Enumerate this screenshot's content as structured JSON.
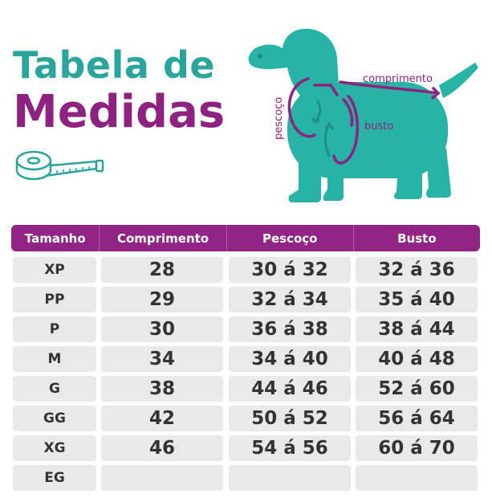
{
  "title": {
    "line1": "Tabela de",
    "line2": "Medidas"
  },
  "diagram": {
    "label_comprimento": "comprimento",
    "label_pescoco": "pescoço",
    "label_busto": "busto"
  },
  "table": {
    "headers": [
      "Tamanho",
      "Comprimento",
      "Pescoço",
      "Busto"
    ],
    "rows": [
      [
        "XP",
        "28",
        "30 á 32",
        "32 á 36"
      ],
      [
        "PP",
        "29",
        "32 á 34",
        "35 á 40"
      ],
      [
        "P",
        "30",
        "36 á 38",
        "38 á 44"
      ],
      [
        "M",
        "34",
        "34 á 40",
        "40 á 48"
      ],
      [
        "G",
        "38",
        "44 á 46",
        "52 á 60"
      ],
      [
        "GG",
        "42",
        "50 á 52",
        "56 á 64"
      ],
      [
        "XG",
        "46",
        "54 á 56",
        "60 á 70"
      ],
      [
        "EG",
        "",
        "",
        ""
      ]
    ]
  },
  "colors": {
    "teal": "#2aa59b",
    "purple": "#8e2281",
    "cell": "#e9e9e9",
    "text": "#333333"
  }
}
